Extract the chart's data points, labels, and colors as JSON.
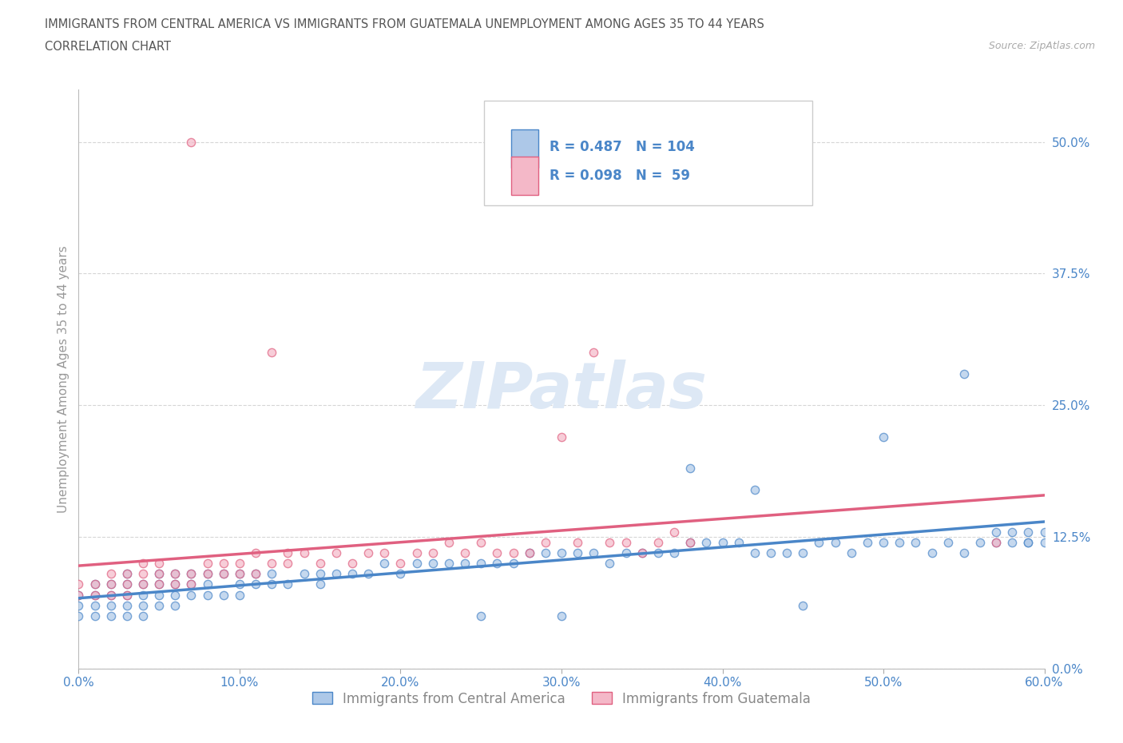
{
  "title_line1": "IMMIGRANTS FROM CENTRAL AMERICA VS IMMIGRANTS FROM GUATEMALA UNEMPLOYMENT AMONG AGES 35 TO 44 YEARS",
  "title_line2": "CORRELATION CHART",
  "source_text": "Source: ZipAtlas.com",
  "ylabel": "Unemployment Among Ages 35 to 44 years",
  "legend_label1": "Immigrants from Central America",
  "legend_label2": "Immigrants from Guatemala",
  "R1": 0.487,
  "N1": 104,
  "R2": 0.098,
  "N2": 59,
  "xlim": [
    0.0,
    0.6
  ],
  "ylim": [
    0.0,
    0.55
  ],
  "yticks": [
    0.0,
    0.125,
    0.25,
    0.375,
    0.5
  ],
  "ytick_labels": [
    "0.0%",
    "12.5%",
    "25.0%",
    "37.5%",
    "50.0%"
  ],
  "xticks": [
    0.0,
    0.1,
    0.2,
    0.3,
    0.4,
    0.5,
    0.6
  ],
  "xtick_labels": [
    "0.0%",
    "10.0%",
    "20.0%",
    "30.0%",
    "40.0%",
    "50.0%",
    "60.0%"
  ],
  "color_blue": "#adc8e8",
  "color_pink": "#f4b8c8",
  "color_line_blue": "#4a86c8",
  "color_line_pink": "#e06080",
  "watermark_color": "#dde8f5",
  "background_color": "#ffffff",
  "grid_color": "#cccccc",
  "title_color": "#555555",
  "legend_text_color": "#4a86c8",
  "blue_x": [
    0.0,
    0.0,
    0.0,
    0.01,
    0.01,
    0.01,
    0.01,
    0.02,
    0.02,
    0.02,
    0.02,
    0.03,
    0.03,
    0.03,
    0.03,
    0.03,
    0.04,
    0.04,
    0.04,
    0.04,
    0.05,
    0.05,
    0.05,
    0.05,
    0.06,
    0.06,
    0.06,
    0.06,
    0.07,
    0.07,
    0.07,
    0.08,
    0.08,
    0.08,
    0.09,
    0.09,
    0.1,
    0.1,
    0.1,
    0.11,
    0.11,
    0.12,
    0.12,
    0.13,
    0.14,
    0.15,
    0.15,
    0.16,
    0.17,
    0.18,
    0.19,
    0.2,
    0.21,
    0.22,
    0.23,
    0.24,
    0.25,
    0.26,
    0.27,
    0.28,
    0.29,
    0.3,
    0.31,
    0.32,
    0.33,
    0.34,
    0.35,
    0.36,
    0.37,
    0.38,
    0.39,
    0.4,
    0.41,
    0.42,
    0.43,
    0.44,
    0.45,
    0.46,
    0.47,
    0.48,
    0.49,
    0.5,
    0.51,
    0.52,
    0.53,
    0.54,
    0.55,
    0.56,
    0.57,
    0.57,
    0.58,
    0.58,
    0.59,
    0.59,
    0.59,
    0.6,
    0.6,
    0.5,
    0.45,
    0.55,
    0.42,
    0.38,
    0.3,
    0.25
  ],
  "blue_y": [
    0.05,
    0.06,
    0.07,
    0.05,
    0.06,
    0.07,
    0.08,
    0.05,
    0.06,
    0.07,
    0.08,
    0.05,
    0.06,
    0.07,
    0.08,
    0.09,
    0.05,
    0.06,
    0.07,
    0.08,
    0.06,
    0.07,
    0.08,
    0.09,
    0.06,
    0.07,
    0.08,
    0.09,
    0.07,
    0.08,
    0.09,
    0.07,
    0.08,
    0.09,
    0.07,
    0.09,
    0.07,
    0.08,
    0.09,
    0.08,
    0.09,
    0.08,
    0.09,
    0.08,
    0.09,
    0.08,
    0.09,
    0.09,
    0.09,
    0.09,
    0.1,
    0.09,
    0.1,
    0.1,
    0.1,
    0.1,
    0.1,
    0.1,
    0.1,
    0.11,
    0.11,
    0.11,
    0.11,
    0.11,
    0.1,
    0.11,
    0.11,
    0.11,
    0.11,
    0.12,
    0.12,
    0.12,
    0.12,
    0.11,
    0.11,
    0.11,
    0.11,
    0.12,
    0.12,
    0.11,
    0.12,
    0.12,
    0.12,
    0.12,
    0.11,
    0.12,
    0.11,
    0.12,
    0.12,
    0.13,
    0.12,
    0.13,
    0.12,
    0.13,
    0.12,
    0.12,
    0.13,
    0.22,
    0.06,
    0.28,
    0.17,
    0.19,
    0.05,
    0.05
  ],
  "pink_x": [
    0.0,
    0.0,
    0.01,
    0.01,
    0.02,
    0.02,
    0.02,
    0.03,
    0.03,
    0.03,
    0.04,
    0.04,
    0.04,
    0.05,
    0.05,
    0.05,
    0.06,
    0.06,
    0.07,
    0.07,
    0.07,
    0.08,
    0.08,
    0.09,
    0.09,
    0.1,
    0.1,
    0.11,
    0.11,
    0.12,
    0.12,
    0.13,
    0.13,
    0.14,
    0.15,
    0.16,
    0.17,
    0.18,
    0.19,
    0.2,
    0.21,
    0.22,
    0.23,
    0.24,
    0.25,
    0.26,
    0.27,
    0.28,
    0.29,
    0.3,
    0.31,
    0.32,
    0.33,
    0.34,
    0.35,
    0.36,
    0.37,
    0.38,
    0.57
  ],
  "pink_y": [
    0.07,
    0.08,
    0.07,
    0.08,
    0.07,
    0.08,
    0.09,
    0.07,
    0.08,
    0.09,
    0.08,
    0.09,
    0.1,
    0.08,
    0.09,
    0.1,
    0.08,
    0.09,
    0.08,
    0.09,
    0.5,
    0.09,
    0.1,
    0.09,
    0.1,
    0.09,
    0.1,
    0.09,
    0.11,
    0.1,
    0.3,
    0.1,
    0.11,
    0.11,
    0.1,
    0.11,
    0.1,
    0.11,
    0.11,
    0.1,
    0.11,
    0.11,
    0.12,
    0.11,
    0.12,
    0.11,
    0.11,
    0.11,
    0.12,
    0.22,
    0.12,
    0.3,
    0.12,
    0.12,
    0.11,
    0.12,
    0.13,
    0.12,
    0.12
  ]
}
